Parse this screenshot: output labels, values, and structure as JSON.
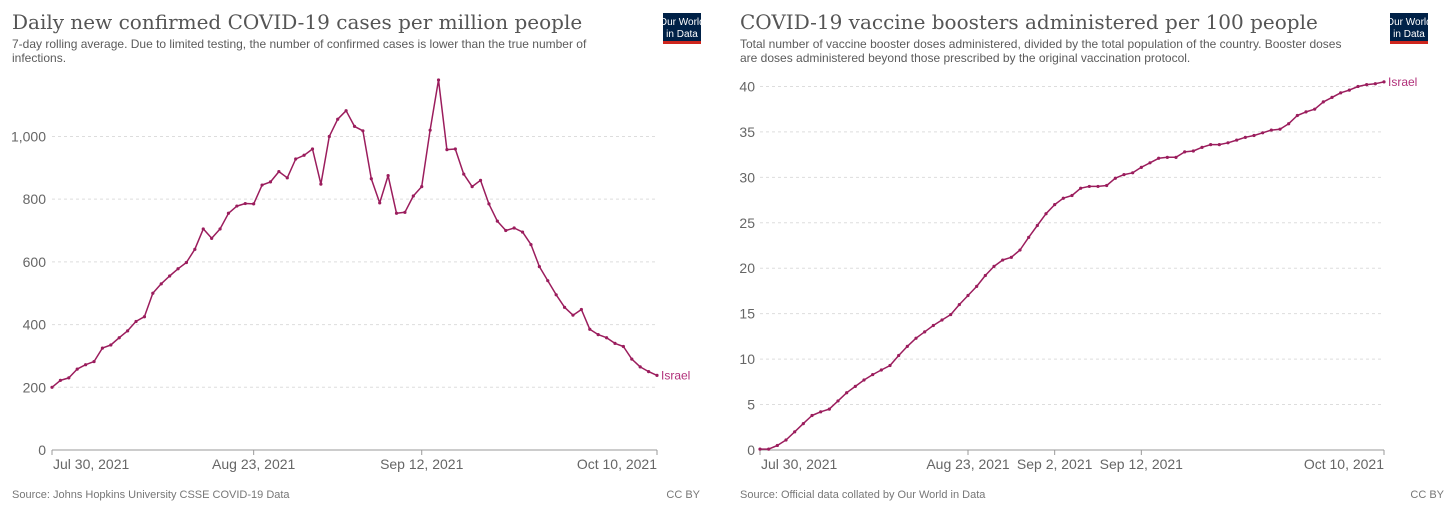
{
  "logo": {
    "line1": "Our World",
    "line2": "in Data",
    "bg": "#002147",
    "accent": "#ce261e"
  },
  "colors": {
    "line": "#9b1d5d",
    "label": "#b1307a",
    "grid": "#dddddd",
    "axis": "#999999"
  },
  "chart_data": [
    {
      "type": "line",
      "title": "Daily new confirmed COVID-19 cases per million people",
      "subtitle": [
        "7-day rolling average. Due to limited testing, the number of confirmed cases is lower than the true number of",
        "infections."
      ],
      "source": "Source: Johns Hopkins University CSSE COVID-19 Data",
      "license": "CC BY",
      "ylim": [
        0,
        1180
      ],
      "yticks": [
        0,
        200,
        400,
        600,
        800,
        1000
      ],
      "ytick_labels": [
        "0",
        "200",
        "400",
        "600",
        "800",
        "1,000"
      ],
      "xticks": [
        {
          "day": 0,
          "label": "Jul 30, 2021"
        },
        {
          "day": 24,
          "label": "Aug 23, 2021"
        },
        {
          "day": 44,
          "label": "Sep 12, 2021"
        },
        {
          "day": 72,
          "label": "Oct 10, 2021"
        }
      ],
      "x_start": "Jul 30, 2021",
      "x_end": "Oct 10, 2021",
      "series": [
        {
          "name": "Israel",
          "values": [
            200,
            222,
            230,
            258,
            272,
            282,
            325,
            335,
            358,
            380,
            410,
            425,
            500,
            530,
            555,
            578,
            598,
            640,
            705,
            675,
            705,
            755,
            778,
            786,
            785,
            845,
            855,
            888,
            868,
            928,
            940,
            960,
            848,
            1000,
            1055,
            1082,
            1032,
            1018,
            865,
            788,
            875,
            755,
            758,
            810,
            840,
            1020,
            1180,
            958,
            960,
            880,
            840,
            860,
            785,
            730,
            700,
            708,
            695,
            655,
            585,
            540,
            495,
            455,
            430,
            448,
            385,
            368,
            358,
            340,
            330,
            290,
            265,
            250,
            238
          ]
        }
      ]
    },
    {
      "type": "line",
      "title": "COVID-19 vaccine boosters administered per 100 people",
      "subtitle": [
        "Total number of vaccine booster doses administered, divided by the total population of the country. Booster doses",
        "are doses administered beyond those prescribed by the original vaccination protocol."
      ],
      "source": "Source: Official data collated by Our World in Data",
      "license": "CC BY",
      "ylim": [
        0,
        40.6
      ],
      "yticks": [
        0,
        5,
        10,
        15,
        20,
        25,
        30,
        35,
        40
      ],
      "ytick_labels": [
        "0",
        "5",
        "10",
        "15",
        "20",
        "25",
        "30",
        "35",
        "40"
      ],
      "xticks": [
        {
          "day": 0,
          "label": "Jul 30, 2021"
        },
        {
          "day": 24,
          "label": "Aug 23, 2021"
        },
        {
          "day": 34,
          "label": "Sep 2, 2021"
        },
        {
          "day": 44,
          "label": "Sep 12, 2021"
        },
        {
          "day": 72,
          "label": "Oct 10, 2021"
        }
      ],
      "x_start": "Jul 30, 2021",
      "x_end": "Oct 10, 2021",
      "series": [
        {
          "name": "Israel",
          "values": [
            0.1,
            0.1,
            0.5,
            1.1,
            2.0,
            2.9,
            3.8,
            4.2,
            4.5,
            5.4,
            6.3,
            7.0,
            7.7,
            8.3,
            8.8,
            9.3,
            10.4,
            11.4,
            12.3,
            13.0,
            13.7,
            14.3,
            14.9,
            16.0,
            17.0,
            18.0,
            19.2,
            20.2,
            20.9,
            21.2,
            22.0,
            23.4,
            24.7,
            26.0,
            27.0,
            27.7,
            28.0,
            28.8,
            29.0,
            29.0,
            29.1,
            29.9,
            30.3,
            30.5,
            31.1,
            31.6,
            32.1,
            32.2,
            32.2,
            32.8,
            32.9,
            33.3,
            33.6,
            33.6,
            33.8,
            34.1,
            34.4,
            34.6,
            34.9,
            35.2,
            35.3,
            35.9,
            36.8,
            37.2,
            37.5,
            38.3,
            38.8,
            39.3,
            39.6,
            40.0,
            40.2,
            40.3,
            40.5
          ]
        }
      ]
    }
  ]
}
